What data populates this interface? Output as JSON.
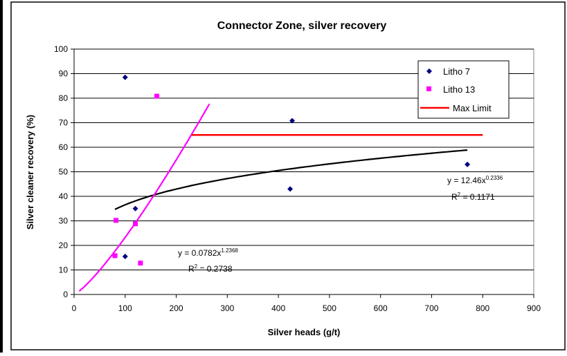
{
  "chart_data": {
    "type": "scatter",
    "title": "Connector Zone, silver recovery",
    "xlabel": "Silver heads (g/t)",
    "ylabel": "Silver cleaner recovery (%)",
    "xlim": [
      0,
      900
    ],
    "ylim": [
      0,
      100
    ],
    "xticks": [
      0,
      100,
      200,
      300,
      400,
      500,
      600,
      700,
      800,
      900
    ],
    "yticks": [
      0,
      10,
      20,
      30,
      40,
      50,
      60,
      70,
      80,
      90,
      100
    ],
    "grid": "horizontal",
    "legend_position": "top-right",
    "series": [
      {
        "name": "Litho 7",
        "marker": "diamond",
        "color": "#000080",
        "points": [
          [
            100,
            88.5
          ],
          [
            120,
            35
          ],
          [
            100,
            15.5
          ],
          [
            427,
            70.8
          ],
          [
            423,
            43
          ],
          [
            770,
            53
          ]
        ]
      },
      {
        "name": "Litho 13",
        "marker": "square",
        "color": "#ff00ff",
        "points": [
          [
            162,
            80.8
          ],
          [
            82,
            30.2
          ],
          [
            120,
            28.8
          ],
          [
            80,
            15.8
          ],
          [
            130,
            12.8
          ]
        ]
      },
      {
        "name": "Max Limit",
        "marker": "line",
        "color": "#ff0000",
        "points": [
          [
            230,
            65
          ],
          [
            800,
            65
          ]
        ]
      }
    ],
    "trendlines": [
      {
        "series": "Litho 7",
        "type": "power",
        "a": 12.46,
        "b": 0.2336,
        "x_range": [
          80,
          770
        ],
        "color": "#000000",
        "equation": {
          "prefix": "y = 12.46x",
          "exp": "0.2336"
        },
        "r2": {
          "prefix": "R",
          "sup": "2",
          "value": " = 0.1171"
        }
      },
      {
        "series": "Litho 13",
        "type": "power",
        "a": 0.0782,
        "b": 1.2368,
        "x_range": [
          10,
          265
        ],
        "color": "#ff00ff",
        "equation": {
          "prefix": "y = 0.0782x",
          "exp": "1.2368"
        },
        "r2": {
          "prefix": "R",
          "sup": "2",
          "value": " = 0.2738"
        }
      }
    ]
  }
}
